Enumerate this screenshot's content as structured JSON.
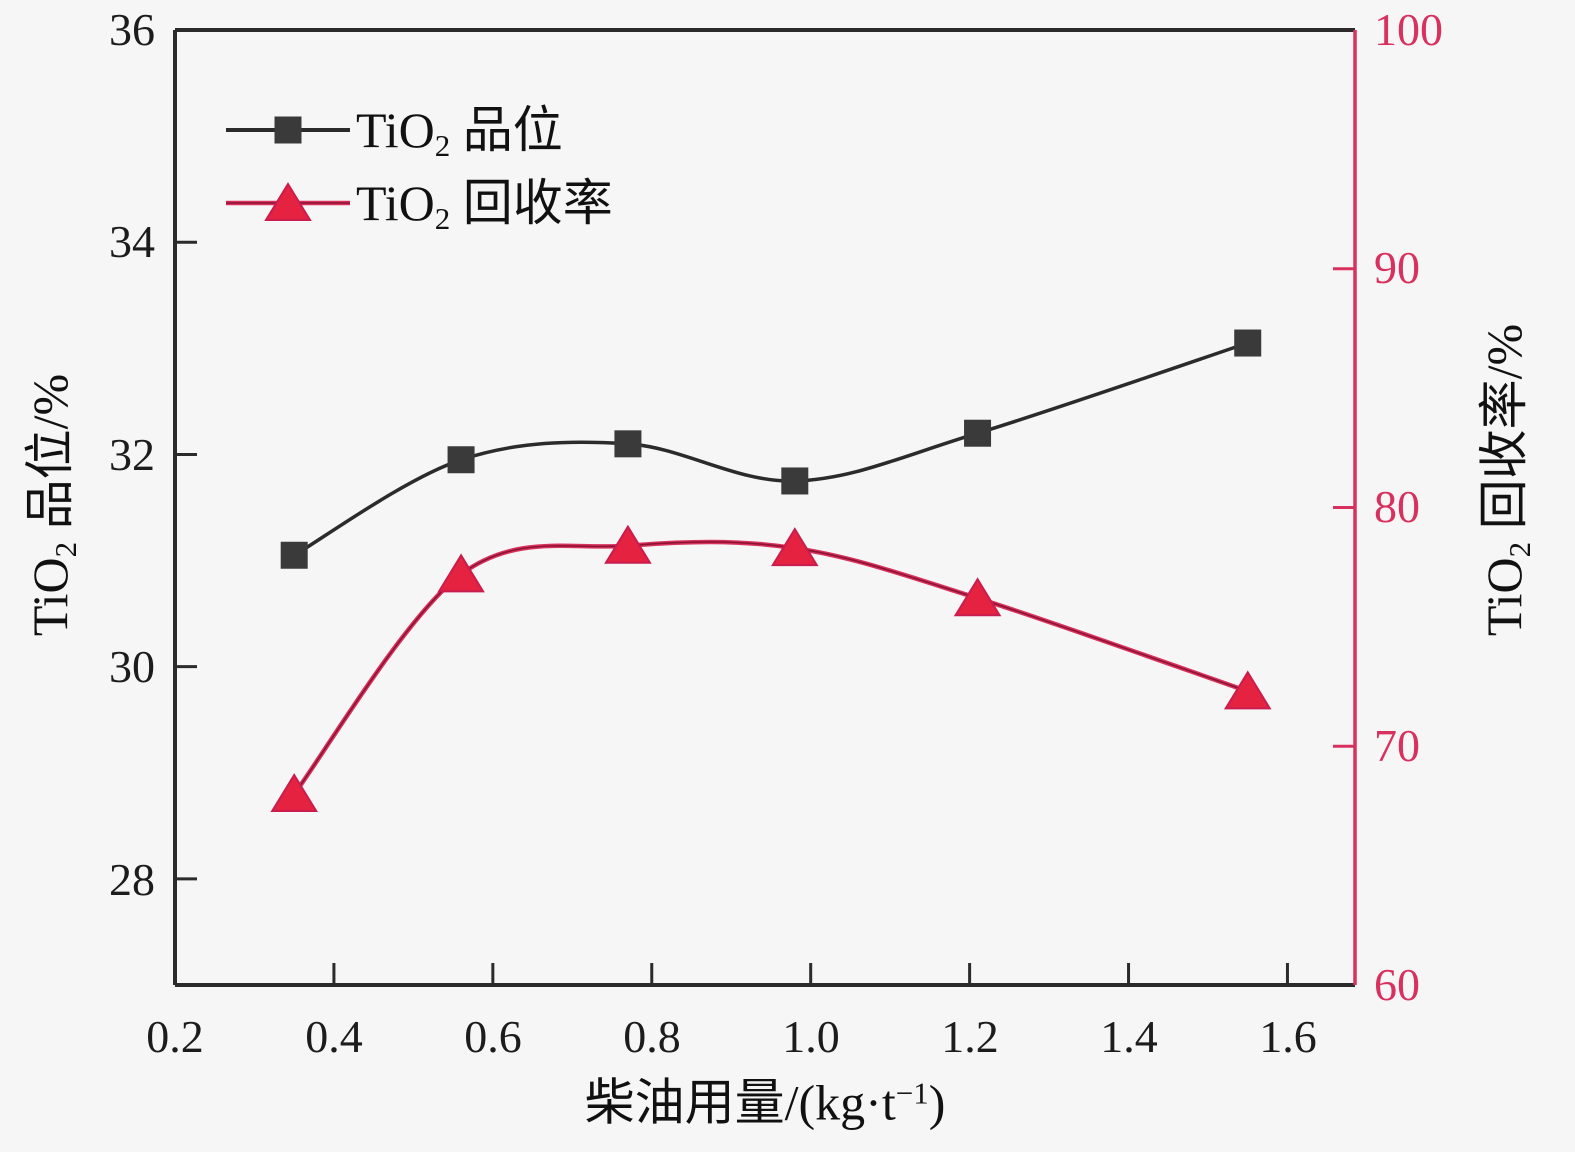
{
  "colors": {
    "background": "#f6f6f6",
    "frame_black": "#2b2b2b",
    "axis_red": "#d8315f",
    "grade_line": "#2b2b2b",
    "grade_marker": "#3a3a3a",
    "recovery_line": "#d8315f",
    "recovery_line_core": "#8c1430",
    "recovery_marker_fill": "#e52240",
    "recovery_marker_stroke": "#c81d4e",
    "tick_label_black": "#1c1c1c"
  },
  "chart_data": {
    "type": "line",
    "x": [
      0.35,
      0.56,
      0.77,
      0.98,
      1.21,
      1.55
    ],
    "series": [
      {
        "name": "TiO2 品位",
        "axis": "left",
        "marker": "square",
        "color": "#2b2b2b",
        "values": [
          31.05,
          31.95,
          32.1,
          31.75,
          32.2,
          33.05
        ]
      },
      {
        "name": "TiO2 回收率",
        "axis": "right",
        "marker": "triangle",
        "color": "#d8315f",
        "values": [
          68.0,
          77.2,
          78.4,
          78.3,
          76.2,
          72.3
        ]
      }
    ],
    "xlabel": "柴油用量/(kg·t−1)",
    "ylabel_left": "TiO2 品位/%",
    "ylabel_right": "TiO2 回收率/%",
    "x_range": [
      0.2,
      1.685
    ],
    "y_left_range": [
      27,
      36
    ],
    "y_right_range": [
      60,
      100
    ],
    "x_tick_values": [
      0.2,
      0.4,
      0.6,
      0.8,
      1.0,
      1.2,
      1.4,
      1.6
    ],
    "x_tick_labels": [
      "0.2",
      "0.4",
      "0.6",
      "0.8",
      "1.0",
      "1.2",
      "1.4",
      "1.6"
    ],
    "y_left_tick_values": [
      36,
      34,
      32,
      30,
      28
    ],
    "y_left_tick_labels": [
      "36",
      "34",
      "32",
      "30",
      "28"
    ],
    "y_right_tick_values": [
      100,
      90,
      80,
      70,
      60
    ],
    "y_right_tick_labels": [
      "100",
      "90",
      "80",
      "70",
      "60"
    ],
    "grid": "off",
    "legend_position": "top-left-inside"
  },
  "titles": {
    "y_left": {
      "pre": "TiO",
      "sub": "2",
      "post": " 品位/%"
    },
    "y_right": {
      "pre": "TiO",
      "sub": "2",
      "post": " 回收率/%"
    },
    "x": {
      "pre": "柴油用量/(kg·t",
      "sup": "−1",
      "post": ")"
    }
  },
  "legend": {
    "item1": {
      "pre": "TiO",
      "sub": "2",
      "post": " 品位"
    },
    "item2": {
      "pre": "TiO",
      "sub": "2",
      "post": " 回收率"
    }
  }
}
